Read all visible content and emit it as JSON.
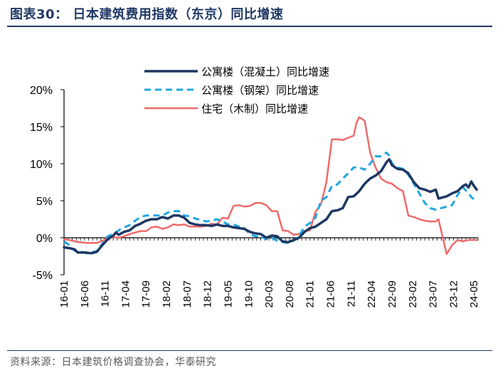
{
  "header": {
    "title": "图表30：  日本建筑费用指数（东京）同比增速"
  },
  "footer": {
    "source": "资料来源：日本建筑价格调查协会，华泰研究"
  },
  "colors": {
    "rc": "#1f3864",
    "steel": "#1ea7e1",
    "wood": "#ef6a6a",
    "title": "#1f3864"
  },
  "chart_data": {
    "type": "line",
    "title": "日本建筑费用指数（东京）同比增速",
    "xlabel": "",
    "ylabel": "",
    "ylim": [
      -5,
      20
    ],
    "yticks": [
      -5,
      0,
      5,
      10,
      15,
      20
    ],
    "ytick_labels": [
      "-5%",
      "0%",
      "5%",
      "10%",
      "15%",
      "20%"
    ],
    "x_tick_labels": [
      "16-01",
      "16-06",
      "16-11",
      "17-04",
      "17-09",
      "18-02",
      "18-07",
      "18-12",
      "19-05",
      "19-10",
      "20-03",
      "20-08",
      "21-01",
      "21-06",
      "21-11",
      "22-04",
      "22-09",
      "23-02",
      "23-07",
      "23-12",
      "24-05"
    ],
    "x_range": [
      "2016-01",
      "2024-06"
    ],
    "legend_position": "top",
    "series": [
      {
        "name": "公寓楼（混凝土）同比增速",
        "style": "solid",
        "color_key": "rc",
        "points": [
          [
            0,
            -1.3
          ],
          [
            2,
            -1.4
          ],
          [
            4,
            -1.6
          ],
          [
            5,
            -2
          ],
          [
            8,
            -2
          ],
          [
            10,
            -2.1
          ],
          [
            12,
            -1.9
          ],
          [
            14,
            -1
          ],
          [
            16,
            -0.2
          ],
          [
            18,
            0.3
          ],
          [
            19,
            0.7
          ],
          [
            20,
            0.4
          ],
          [
            22,
            0.8
          ],
          [
            24,
            1
          ],
          [
            26,
            1.6
          ],
          [
            28,
            1.9
          ],
          [
            30,
            2.3
          ],
          [
            32,
            2.5
          ],
          [
            34,
            2.5
          ],
          [
            36,
            2.8
          ],
          [
            38,
            2.6
          ],
          [
            40,
            3
          ],
          [
            42,
            3
          ],
          [
            44,
            2.7
          ],
          [
            46,
            2
          ],
          [
            48,
            1.8
          ],
          [
            50,
            1.7
          ],
          [
            52,
            1.7
          ],
          [
            54,
            1.6
          ],
          [
            56,
            1.8
          ],
          [
            58,
            1.6
          ],
          [
            60,
            1.6
          ],
          [
            62,
            1.4
          ],
          [
            64,
            1.3
          ],
          [
            66,
            1.2
          ],
          [
            68,
            0.8
          ],
          [
            70,
            0.6
          ],
          [
            72,
            0.5
          ],
          [
            74,
            0
          ],
          [
            76,
            0.3
          ],
          [
            78,
            0.2
          ],
          [
            80,
            -0.5
          ],
          [
            82,
            -0.6
          ],
          [
            84,
            -0.3
          ],
          [
            86,
            0
          ],
          [
            88,
            0.8
          ],
          [
            90,
            1.3
          ],
          [
            92,
            1.5
          ],
          [
            94,
            2
          ],
          [
            96,
            2.5
          ],
          [
            98,
            3.6
          ],
          [
            100,
            3.7
          ],
          [
            102,
            4
          ],
          [
            104,
            5.5
          ],
          [
            106,
            5.6
          ],
          [
            108,
            6.3
          ],
          [
            110,
            7.3
          ],
          [
            112,
            8
          ],
          [
            114,
            8.4
          ],
          [
            116,
            9
          ],
          [
            118,
            10.2
          ],
          [
            119,
            10.6
          ],
          [
            120,
            9.8
          ],
          [
            122,
            9.3
          ],
          [
            124,
            9.2
          ],
          [
            126,
            8.7
          ],
          [
            128,
            7.5
          ],
          [
            130,
            6.7
          ],
          [
            132,
            6.5
          ],
          [
            134,
            6.2
          ],
          [
            136,
            6.5
          ],
          [
            137,
            5.3
          ],
          [
            140,
            5.6
          ],
          [
            142,
            6
          ],
          [
            144,
            6.3
          ],
          [
            146,
            7
          ],
          [
            147,
            7.2
          ],
          [
            148,
            6.8
          ],
          [
            149,
            7.6
          ],
          [
            150,
            7
          ],
          [
            151,
            6.5
          ]
        ]
      },
      {
        "name": "公寓楼（钢架）同比增速",
        "style": "dashed",
        "color_key": "steel",
        "points": [
          [
            0,
            -0.5
          ],
          [
            2,
            -1
          ],
          [
            4,
            -1.8
          ],
          [
            6,
            -1.8
          ],
          [
            8,
            -2.1
          ],
          [
            10,
            -2
          ],
          [
            12,
            -1.8
          ],
          [
            14,
            -0.8
          ],
          [
            16,
            0.2
          ],
          [
            18,
            0.5
          ],
          [
            20,
            1
          ],
          [
            22,
            1.4
          ],
          [
            24,
            1.7
          ],
          [
            26,
            2.3
          ],
          [
            28,
            2.8
          ],
          [
            30,
            3
          ],
          [
            32,
            3
          ],
          [
            34,
            3
          ],
          [
            36,
            3
          ],
          [
            38,
            3.4
          ],
          [
            40,
            3.6
          ],
          [
            42,
            3.6
          ],
          [
            44,
            3
          ],
          [
            46,
            2.9
          ],
          [
            48,
            2.6
          ],
          [
            50,
            2.4
          ],
          [
            52,
            2.2
          ],
          [
            54,
            2.3
          ],
          [
            56,
            2.5
          ],
          [
            58,
            2.2
          ],
          [
            60,
            1.8
          ],
          [
            62,
            1.8
          ],
          [
            64,
            1.5
          ],
          [
            66,
            1.3
          ],
          [
            68,
            0.5
          ],
          [
            70,
            0.2
          ],
          [
            72,
            0.2
          ],
          [
            74,
            -0.2
          ],
          [
            76,
            0
          ],
          [
            78,
            -0.4
          ],
          [
            80,
            -0.6
          ],
          [
            82,
            -0.7
          ],
          [
            84,
            -0.4
          ],
          [
            86,
            0.3
          ],
          [
            88,
            1.5
          ],
          [
            90,
            2
          ],
          [
            92,
            2.7
          ],
          [
            94,
            5
          ],
          [
            96,
            5.5
          ],
          [
            98,
            7
          ],
          [
            100,
            7.2
          ],
          [
            102,
            8
          ],
          [
            104,
            8.7
          ],
          [
            106,
            9.5
          ],
          [
            108,
            9.5
          ],
          [
            110,
            9.2
          ],
          [
            112,
            10
          ],
          [
            114,
            11
          ],
          [
            116,
            11
          ],
          [
            118,
            11.5
          ],
          [
            119,
            11.1
          ],
          [
            120,
            10
          ],
          [
            122,
            9.5
          ],
          [
            124,
            9.3
          ],
          [
            126,
            8.5
          ],
          [
            128,
            7.3
          ],
          [
            130,
            6
          ],
          [
            132,
            4.7
          ],
          [
            134,
            4
          ],
          [
            136,
            3.8
          ],
          [
            138,
            4
          ],
          [
            140,
            4.2
          ],
          [
            142,
            4.4
          ],
          [
            144,
            5.8
          ],
          [
            146,
            6.8
          ],
          [
            148,
            6
          ],
          [
            149,
            5.5
          ],
          [
            150,
            5.2
          ],
          [
            151,
            5.1
          ]
        ]
      },
      {
        "name": "住宅（木制）同比增速",
        "style": "solid",
        "color_key": "wood",
        "points": [
          [
            0,
            -0.2
          ],
          [
            2,
            -0.3
          ],
          [
            4,
            -0.5
          ],
          [
            6,
            -0.6
          ],
          [
            8,
            -0.7
          ],
          [
            10,
            -0.7
          ],
          [
            12,
            -0.7
          ],
          [
            14,
            -0.4
          ],
          [
            16,
            0
          ],
          [
            18,
            0.1
          ],
          [
            20,
            0
          ],
          [
            22,
            0.2
          ],
          [
            24,
            0.5
          ],
          [
            26,
            0.7
          ],
          [
            28,
            0.9
          ],
          [
            30,
            0.9
          ],
          [
            32,
            1.4
          ],
          [
            34,
            1.5
          ],
          [
            36,
            1.2
          ],
          [
            38,
            1.4
          ],
          [
            40,
            1.8
          ],
          [
            42,
            1.7
          ],
          [
            44,
            1.8
          ],
          [
            46,
            1.5
          ],
          [
            48,
            1.5
          ],
          [
            50,
            1.5
          ],
          [
            52,
            1.6
          ],
          [
            54,
            1.9
          ],
          [
            56,
            1.8
          ],
          [
            58,
            2.7
          ],
          [
            60,
            2.6
          ],
          [
            62,
            4.3
          ],
          [
            64,
            4.4
          ],
          [
            66,
            4.2
          ],
          [
            68,
            4.3
          ],
          [
            70,
            4.7
          ],
          [
            72,
            4.7
          ],
          [
            74,
            4.4
          ],
          [
            76,
            3.6
          ],
          [
            78,
            3.6
          ],
          [
            80,
            1
          ],
          [
            82,
            0.9
          ],
          [
            84,
            0.4
          ],
          [
            86,
            0.5
          ],
          [
            88,
            0.9
          ],
          [
            90,
            1
          ],
          [
            92,
            3.5
          ],
          [
            94,
            4.5
          ],
          [
            96,
            7.5
          ],
          [
            98,
            13.3
          ],
          [
            100,
            13.3
          ],
          [
            102,
            13.2
          ],
          [
            104,
            13.5
          ],
          [
            106,
            13.8
          ],
          [
            107,
            15.5
          ],
          [
            108,
            16.3
          ],
          [
            110,
            15.8
          ],
          [
            112,
            11.5
          ],
          [
            114,
            9.5
          ],
          [
            116,
            8
          ],
          [
            118,
            7.5
          ],
          [
            120,
            7.3
          ],
          [
            122,
            6.7
          ],
          [
            124,
            6.3
          ],
          [
            126,
            3
          ],
          [
            128,
            2.8
          ],
          [
            130,
            2.5
          ],
          [
            132,
            2.3
          ],
          [
            134,
            2.2
          ],
          [
            136,
            2.2
          ],
          [
            137,
            2.5
          ],
          [
            140,
            -2.2
          ],
          [
            142,
            -1
          ],
          [
            144,
            -0.3
          ],
          [
            146,
            -0.5
          ],
          [
            148,
            -0.3
          ],
          [
            150,
            -0.3
          ],
          [
            151,
            -0.3
          ]
        ]
      }
    ]
  }
}
